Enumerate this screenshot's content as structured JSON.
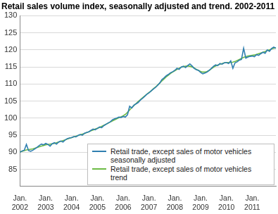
{
  "chart_data": {
    "type": "line",
    "title": "Retail sales volume index, seasonally adjusted and trend. 2002-2011",
    "categories": [
      "Jan. 2002",
      null,
      null,
      null,
      null,
      null,
      null,
      null,
      null,
      null,
      null,
      null,
      "Jan. 2003",
      null,
      null,
      null,
      null,
      null,
      null,
      null,
      null,
      null,
      null,
      null,
      "Jan. 2004",
      null,
      null,
      null,
      null,
      null,
      null,
      null,
      null,
      null,
      null,
      null,
      "Jan. 2005",
      null,
      null,
      null,
      null,
      null,
      null,
      null,
      null,
      null,
      null,
      null,
      "Jan. 2006",
      null,
      null,
      null,
      null,
      null,
      null,
      null,
      null,
      null,
      null,
      null,
      "Jan. 2007",
      null,
      null,
      null,
      null,
      null,
      null,
      null,
      null,
      null,
      null,
      null,
      "Jan. 2008",
      null,
      null,
      null,
      null,
      null,
      null,
      null,
      null,
      null,
      null,
      null,
      "Jan. 2009",
      null,
      null,
      null,
      null,
      null,
      null,
      null,
      null,
      null,
      null,
      null,
      "Jan. 2010",
      null,
      null,
      null,
      null,
      null,
      null,
      null,
      null,
      null,
      null,
      null,
      "Jan. 2011",
      null,
      null,
      null,
      null,
      null,
      null,
      null,
      null,
      null,
      null,
      null
    ],
    "series": [
      {
        "name": "Retail trade, except sales of motor vehicles seasonally adjusted",
        "color": "#2f7fb0",
        "values": [
          90.0,
          90.4,
          90.6,
          92.3,
          90.5,
          90.3,
          90.6,
          91.0,
          91.5,
          92.0,
          92.4,
          92.2,
          92.6,
          92.3,
          91.8,
          92.5,
          92.8,
          92.4,
          93.0,
          93.3,
          93.0,
          93.6,
          94.0,
          94.2,
          94.3,
          94.6,
          94.5,
          94.9,
          95.2,
          95.0,
          95.6,
          95.8,
          96.0,
          96.4,
          96.8,
          96.6,
          97.0,
          97.4,
          97.2,
          97.8,
          98.2,
          98.6,
          98.9,
          99.5,
          99.8,
          100.0,
          100.3,
          100.2,
          100.5,
          100.3,
          101.0,
          103.5,
          103.0,
          103.8,
          104.2,
          104.6,
          105.3,
          105.8,
          106.4,
          107.0,
          107.4,
          108.0,
          108.5,
          109.0,
          109.6,
          110.3,
          111.3,
          111.8,
          112.4,
          112.8,
          113.3,
          113.6,
          114.0,
          114.6,
          114.3,
          115.0,
          115.2,
          114.8,
          115.4,
          115.9,
          115.3,
          114.6,
          114.2,
          114.0,
          113.4,
          113.0,
          113.2,
          113.5,
          114.0,
          114.6,
          115.2,
          115.6,
          115.4,
          116.0,
          115.8,
          116.2,
          116.3,
          116.0,
          116.8,
          114.6,
          116.2,
          116.5,
          117.0,
          117.2,
          120.5,
          117.6,
          117.9,
          118.1,
          118.2,
          118.0,
          118.6,
          118.4,
          118.9,
          119.3,
          119.0,
          120.0,
          119.6,
          120.4,
          120.8,
          120.5
        ]
      },
      {
        "name": "Retail trade, except sales of motor vehicles trend",
        "color": "#6dbb45",
        "values": [
          90.1,
          90.3,
          90.5,
          90.7,
          90.8,
          90.9,
          91.0,
          91.2,
          91.4,
          91.6,
          91.8,
          92.0,
          92.2,
          92.3,
          92.4,
          92.5,
          92.6,
          92.8,
          93.0,
          93.2,
          93.4,
          93.6,
          93.9,
          94.1,
          94.3,
          94.5,
          94.7,
          94.9,
          95.1,
          95.3,
          95.5,
          95.8,
          96.0,
          96.3,
          96.5,
          96.8,
          97.0,
          97.3,
          97.6,
          97.9,
          98.2,
          98.5,
          98.9,
          99.2,
          99.5,
          99.8,
          100.1,
          100.4,
          100.7,
          101.1,
          101.7,
          102.4,
          103.1,
          103.7,
          104.3,
          104.9,
          105.4,
          106.0,
          106.5,
          107.0,
          107.5,
          108.0,
          108.6,
          109.1,
          109.7,
          110.3,
          110.9,
          111.5,
          112.1,
          112.6,
          113.1,
          113.5,
          113.9,
          114.3,
          114.6,
          114.9,
          115.1,
          115.2,
          115.3,
          115.2,
          115.0,
          114.7,
          114.3,
          114.0,
          113.7,
          113.5,
          113.5,
          113.7,
          114.0,
          114.5,
          114.9,
          115.3,
          115.6,
          115.8,
          116.0,
          116.2,
          116.3,
          116.3,
          116.3,
          116.4,
          116.6,
          116.9,
          117.2,
          117.5,
          117.8,
          118.0,
          118.2,
          118.3,
          118.4,
          118.5,
          118.7,
          118.9,
          119.1,
          119.3,
          119.5,
          119.8,
          120.0,
          120.3,
          120.5,
          120.6
        ]
      }
    ],
    "ylim": [
      80,
      130
    ],
    "yticks": [
      85,
      90,
      95,
      100,
      105,
      110,
      115,
      120,
      125,
      130
    ],
    "grid": true,
    "legend": "lower right"
  }
}
